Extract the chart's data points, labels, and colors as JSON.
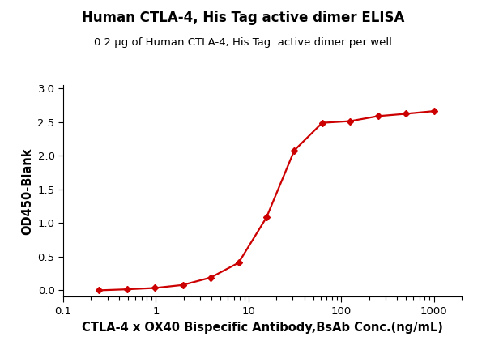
{
  "title": "Human CTLA-4, His Tag active dimer ELISA",
  "subtitle": "0.2 μg of Human CTLA-4, His Tag  active dimer per well",
  "xlabel": "CTLA-4 x OX40 Bispecific Antibody,BsAb Conc.(ng/mL)",
  "ylabel": "OD450-Blank",
  "x_data": [
    0.244,
    0.488,
    0.977,
    1.953,
    3.906,
    7.813,
    15.625,
    31.25,
    62.5,
    125,
    250,
    500,
    1000
  ],
  "y_data": [
    -0.005,
    0.01,
    0.03,
    0.075,
    0.185,
    0.405,
    1.08,
    2.08,
    2.49,
    2.515,
    2.59,
    2.625,
    2.665
  ],
  "line_color": "#CC0000",
  "marker_color": "#CC0000",
  "marker": "D",
  "marker_size": 4,
  "xlim_log": [
    0.1,
    2000
  ],
  "ylim": [
    -0.1,
    3.05
  ],
  "yticks": [
    0.0,
    0.5,
    1.0,
    1.5,
    2.0,
    2.5,
    3.0
  ],
  "background_color": "#ffffff",
  "title_fontsize": 12,
  "subtitle_fontsize": 9.5,
  "label_fontsize": 10.5,
  "tick_fontsize": 9.5
}
